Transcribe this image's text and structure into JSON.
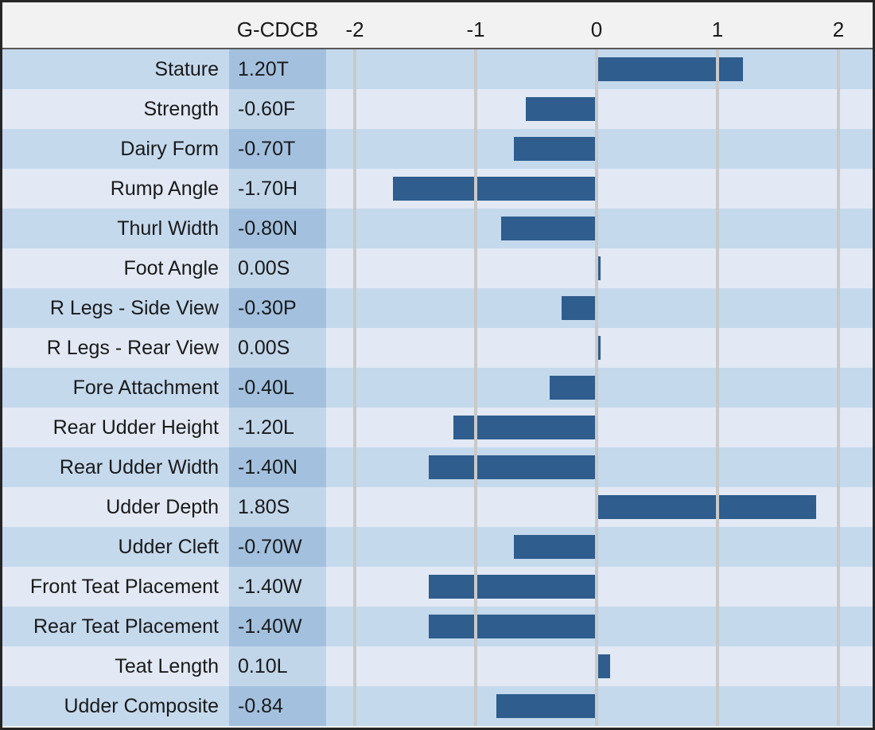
{
  "chart_data": {
    "type": "bar",
    "orientation": "horizontal",
    "title": "",
    "column_header": "G-CDCB",
    "categories": [
      "Stature",
      "Strength",
      "Dairy Form",
      "Rump Angle",
      "Thurl Width",
      "Foot Angle",
      "R Legs - Side View",
      "R Legs - Rear View",
      "Fore Attachment",
      "Rear Udder Height",
      "Rear Udder Width",
      "Udder Depth",
      "Udder Cleft",
      "Front Teat Placement",
      "Rear Teat Placement",
      "Teat Length",
      "Udder Composite"
    ],
    "values": [
      1.2,
      -0.6,
      -0.7,
      -1.7,
      -0.8,
      0.0,
      -0.3,
      0.0,
      -0.4,
      -1.2,
      -1.4,
      1.8,
      -0.7,
      -1.4,
      -1.4,
      0.1,
      -0.84
    ],
    "value_labels": [
      "1.20T",
      "-0.60F",
      "-0.70T",
      "-1.70H",
      "-0.80N",
      "0.00S",
      "-0.30P",
      "0.00S",
      "-0.40L",
      "-1.20L",
      "-1.40N",
      "1.80S",
      "-0.70W",
      "-1.40W",
      "-1.40W",
      "0.10L",
      "-0.84"
    ],
    "xlim": [
      -2.25,
      2.28
    ],
    "x_ticks": [
      -2,
      -1,
      0,
      1,
      2
    ],
    "grid": true,
    "legend": false,
    "bar_color": "#2e5d8e"
  },
  "header": {
    "column_label": "G-CDCB",
    "ticks": [
      "-2",
      "-1",
      "0",
      "1",
      "2"
    ]
  },
  "rows": [
    {
      "trait": "Stature",
      "value_label": "1.20T",
      "value": 1.2
    },
    {
      "trait": "Strength",
      "value_label": "-0.60F",
      "value": -0.6
    },
    {
      "trait": "Dairy Form",
      "value_label": "-0.70T",
      "value": -0.7
    },
    {
      "trait": "Rump Angle",
      "value_label": "-1.70H",
      "value": -1.7
    },
    {
      "trait": "Thurl Width",
      "value_label": "-0.80N",
      "value": -0.8
    },
    {
      "trait": "Foot Angle",
      "value_label": "0.00S",
      "value": 0.0
    },
    {
      "trait": "R Legs - Side View",
      "value_label": "-0.30P",
      "value": -0.3
    },
    {
      "trait": "R Legs - Rear View",
      "value_label": "0.00S",
      "value": 0.0
    },
    {
      "trait": "Fore Attachment",
      "value_label": "-0.40L",
      "value": -0.4
    },
    {
      "trait": "Rear Udder Height",
      "value_label": "-1.20L",
      "value": -1.2
    },
    {
      "trait": "Rear Udder Width",
      "value_label": "-1.40N",
      "value": -1.4
    },
    {
      "trait": "Udder Depth",
      "value_label": "1.80S",
      "value": 1.8
    },
    {
      "trait": "Udder Cleft",
      "value_label": "-0.70W",
      "value": -0.7
    },
    {
      "trait": "Front Teat Placement",
      "value_label": "-1.40W",
      "value": -1.4
    },
    {
      "trait": "Rear Teat Placement",
      "value_label": "-1.40W",
      "value": -1.4
    },
    {
      "trait": "Teat Length",
      "value_label": "0.10L",
      "value": 0.1
    },
    {
      "trait": "Udder Composite",
      "value_label": "-0.84",
      "value": -0.84
    }
  ],
  "colors": {
    "bar": "#2e5d8e",
    "row_dark": "#c5d9ed",
    "row_light": "#e2e9f4",
    "value_cell_dark": "#a3c1df",
    "value_cell_light": "#c2d6ea",
    "gridline": "#c9c9c9",
    "header_background": "#f2f2f2",
    "frame_border": "#262626",
    "text": "#1a1a1a"
  }
}
